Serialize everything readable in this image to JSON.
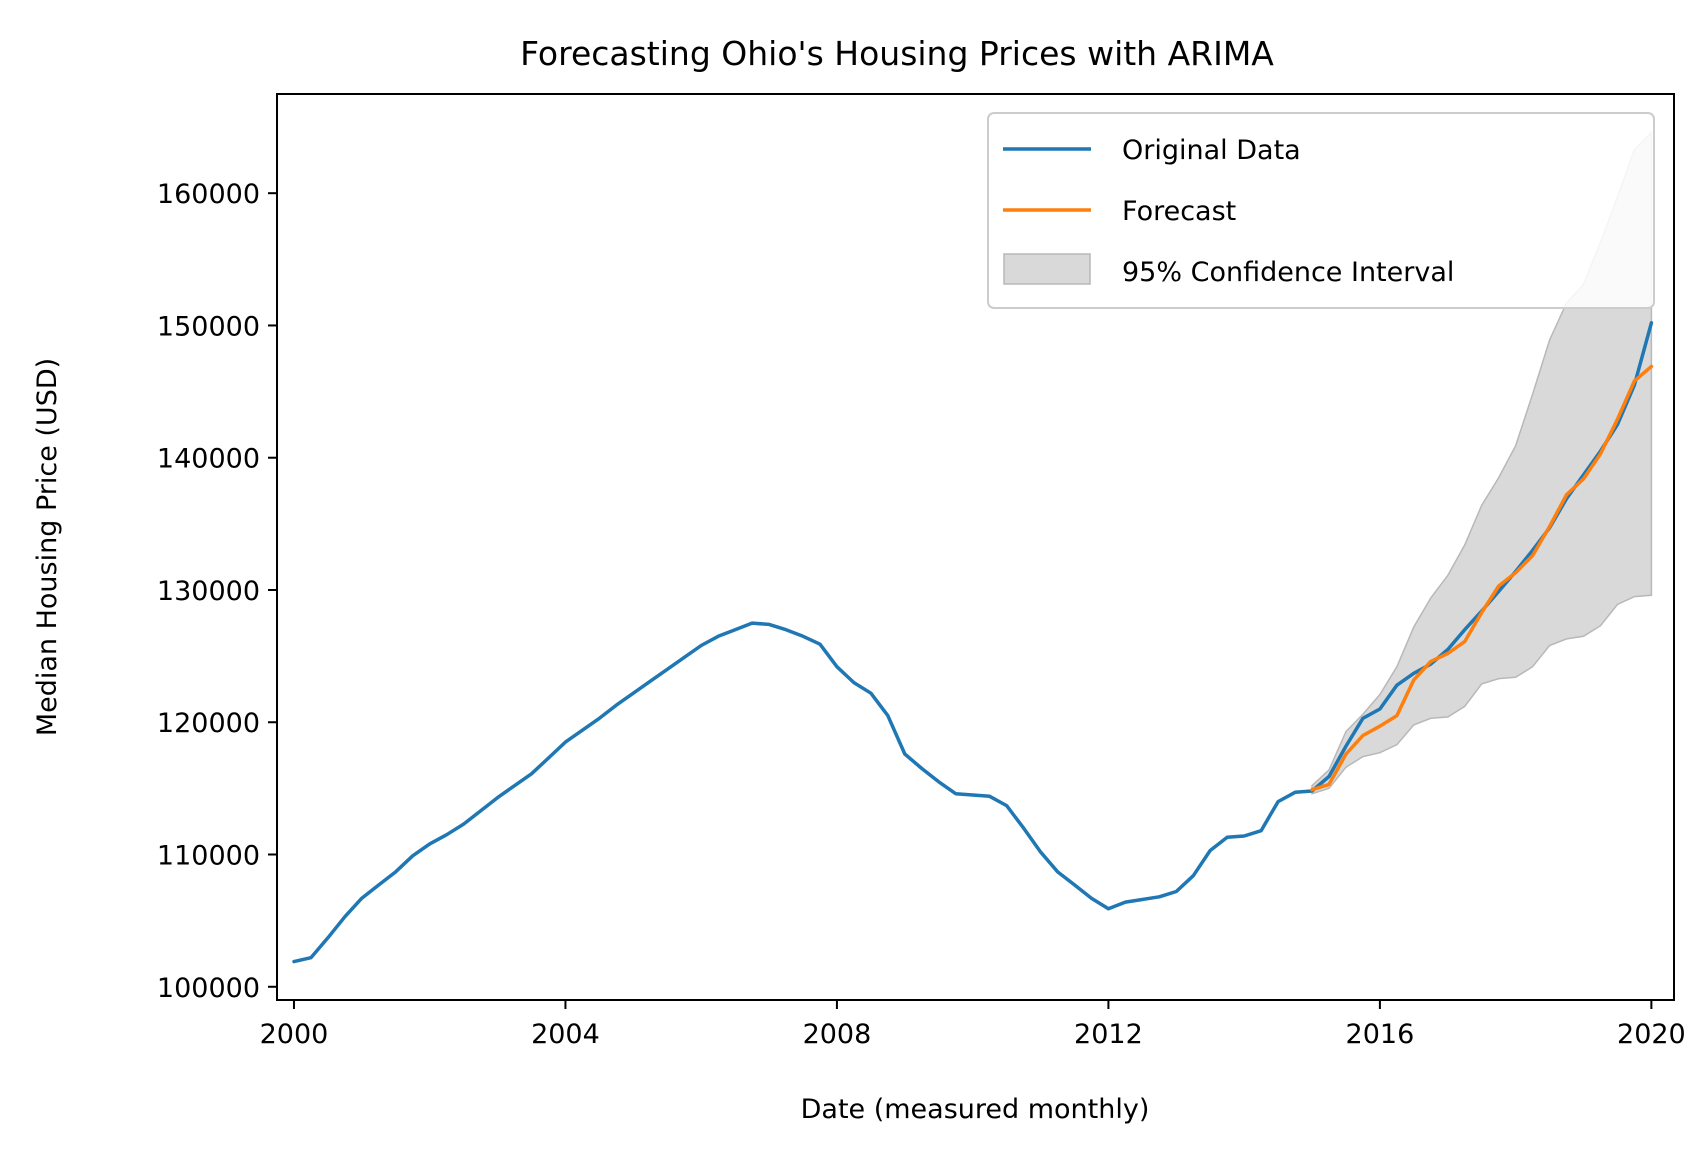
{
  "chart_data": {
    "type": "line",
    "title": "Forecasting Ohio's Housing Prices with ARIMA",
    "xlabel": "Date (measured monthly)",
    "ylabel": "Median Housing Price (USD)",
    "xlim": [
      "1999-10",
      "2020-05"
    ],
    "ylim": [
      99000,
      167500
    ],
    "x_ticks": [
      "2000",
      "2004",
      "2008",
      "2012",
      "2016",
      "2020"
    ],
    "y_ticks": [
      "100000",
      "110000",
      "120000",
      "130000",
      "140000",
      "150000",
      "160000"
    ],
    "grid": false,
    "legend_position": "top-right",
    "colors": {
      "original": "#1f77b4",
      "forecast": "#ff7f0e",
      "ci_fill": "#d9d9d9",
      "ci_edge": "#b8b8b8"
    },
    "series": [
      {
        "name": "Original Data",
        "x": [
          "2000-01",
          "2000-04",
          "2000-07",
          "2000-10",
          "2001-01",
          "2001-04",
          "2001-07",
          "2001-10",
          "2002-01",
          "2002-04",
          "2002-07",
          "2002-10",
          "2003-01",
          "2003-04",
          "2003-07",
          "2003-10",
          "2004-01",
          "2004-04",
          "2004-07",
          "2004-10",
          "2005-01",
          "2005-04",
          "2005-07",
          "2005-10",
          "2006-01",
          "2006-04",
          "2006-07",
          "2006-10",
          "2007-01",
          "2007-04",
          "2007-07",
          "2007-10",
          "2008-01",
          "2008-04",
          "2008-07",
          "2008-10",
          "2009-01",
          "2009-04",
          "2009-07",
          "2009-10",
          "2010-01",
          "2010-04",
          "2010-07",
          "2010-10",
          "2011-01",
          "2011-04",
          "2011-07",
          "2011-10",
          "2012-01",
          "2012-04",
          "2012-07",
          "2012-10",
          "2013-01",
          "2013-04",
          "2013-07",
          "2013-10",
          "2014-01",
          "2014-04",
          "2014-07",
          "2014-10",
          "2015-01",
          "2015-04",
          "2015-07",
          "2015-10",
          "2016-01",
          "2016-04",
          "2016-07",
          "2016-10",
          "2017-01",
          "2017-04",
          "2017-07",
          "2017-10",
          "2018-01",
          "2018-04",
          "2018-07",
          "2018-10",
          "2019-01",
          "2019-04",
          "2019-07",
          "2019-10",
          "2020-01"
        ],
        "y": [
          101900,
          102200,
          103700,
          105300,
          106700,
          107700,
          108700,
          109900,
          110800,
          111500,
          112300,
          113300,
          114300,
          115200,
          116100,
          117300,
          118500,
          119400,
          120300,
          121300,
          122200,
          123100,
          124000,
          124900,
          125800,
          126500,
          127000,
          127500,
          127400,
          127000,
          126500,
          125900,
          124200,
          123000,
          122200,
          120500,
          117600,
          116500,
          115500,
          114600,
          114500,
          114400,
          113700,
          112000,
          110200,
          108700,
          107700,
          106700,
          105900,
          106400,
          106600,
          106800,
          107200,
          108400,
          110300,
          111300,
          111400,
          111800,
          114000,
          114700,
          114800,
          115900,
          118200,
          120300,
          121000,
          122800,
          123700,
          124400,
          125500,
          127000,
          128400,
          129900,
          131400,
          133000,
          134700,
          136900,
          138700,
          140500,
          142500,
          145500,
          150200
        ]
      },
      {
        "name": "Forecast",
        "x": [
          "2015-01",
          "2015-04",
          "2015-07",
          "2015-10",
          "2016-01",
          "2016-04",
          "2016-07",
          "2016-10",
          "2017-01",
          "2017-04",
          "2017-07",
          "2017-10",
          "2018-01",
          "2018-04",
          "2018-07",
          "2018-10",
          "2019-01",
          "2019-04",
          "2019-07",
          "2019-10",
          "2020-01"
        ],
        "y": [
          114900,
          115300,
          117600,
          119000,
          119700,
          120500,
          123200,
          124600,
          125200,
          126100,
          128300,
          130300,
          131300,
          132600,
          134800,
          137200,
          138400,
          140300,
          142900,
          145800,
          146900
        ]
      }
    ],
    "confidence_interval": {
      "name": "95% Confidence Interval",
      "x": [
        "2015-01",
        "2015-04",
        "2015-07",
        "2015-10",
        "2016-01",
        "2016-04",
        "2016-07",
        "2016-10",
        "2017-01",
        "2017-04",
        "2017-07",
        "2017-10",
        "2018-01",
        "2018-04",
        "2018-07",
        "2018-10",
        "2019-01",
        "2019-04",
        "2019-07",
        "2019-10",
        "2020-01"
      ],
      "lower": [
        114600,
        115000,
        116600,
        117400,
        117700,
        118300,
        119800,
        120300,
        120400,
        121200,
        122900,
        123300,
        123400,
        124200,
        125800,
        126300,
        126500,
        127300,
        128900,
        129500,
        129600
      ],
      "upper": [
        115200,
        116400,
        119300,
        120600,
        122100,
        124200,
        127200,
        129400,
        131100,
        133400,
        136400,
        138500,
        140900,
        144800,
        148900,
        151700,
        153100,
        156300,
        159700,
        163300,
        164600
      ]
    }
  }
}
